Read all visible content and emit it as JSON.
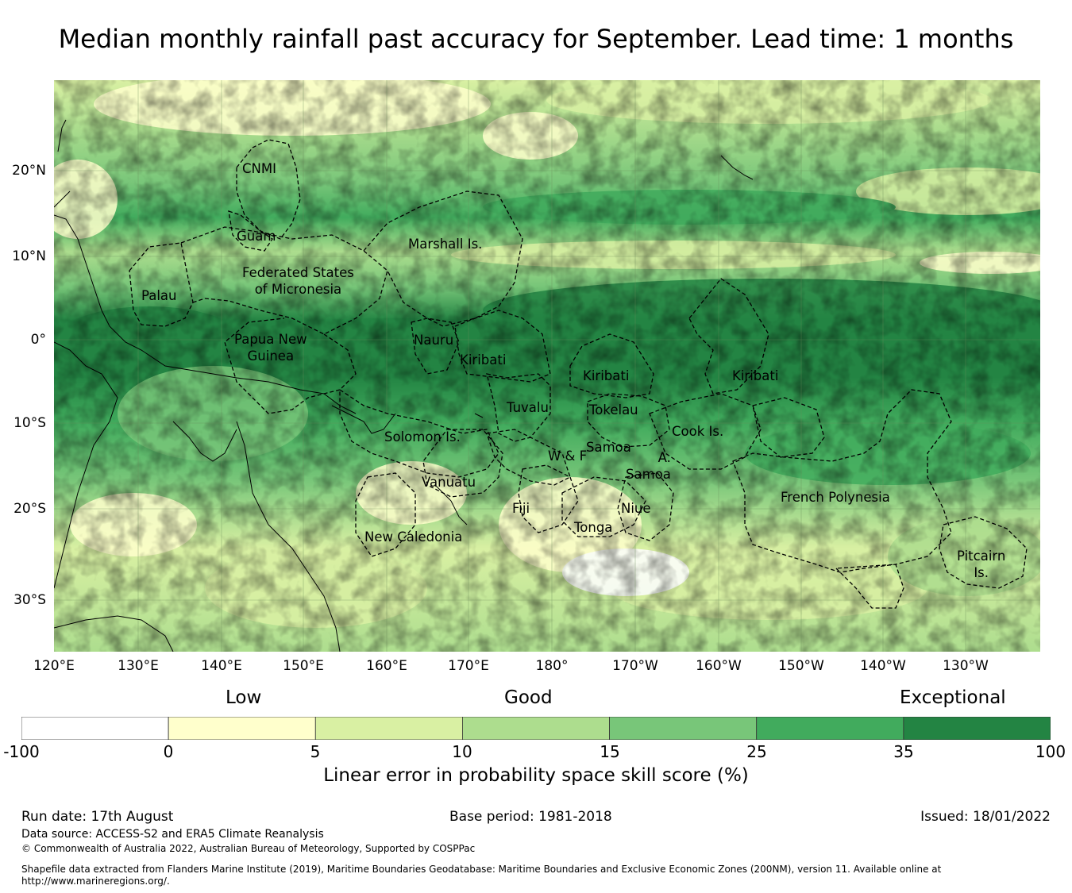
{
  "title": "Median monthly rainfall past accuracy for September. Lead time: 1 months",
  "map": {
    "lat_labels": [
      "20°N",
      "10°N",
      "0°",
      "10°S",
      "20°S",
      "30°S"
    ],
    "lon_labels": [
      "120°E",
      "130°E",
      "140°E",
      "150°E",
      "160°E",
      "170°E",
      "180°",
      "170°W",
      "160°W",
      "150°W",
      "140°W",
      "130°W"
    ],
    "regions": [
      "CNMI",
      "Guam",
      "Marshall Is.",
      "Federated States\nof Micronesia",
      "Palau",
      "Papua New\nGuinea",
      "Nauru",
      "Kiribati",
      "Kiribati",
      "Kiribati",
      "Tuvalu",
      "Tokelau",
      "Solomon Is.",
      "Cook Is.",
      "Samoa",
      "W & F",
      "A.\nSamoa",
      "Vanuatu",
      "Fiji",
      "Niue",
      "Tonga",
      "French Polynesia",
      "New Caledonia",
      "Pitcairn\nIs."
    ]
  },
  "legend": {
    "band_labels": [
      "Low",
      "Good",
      "Exceptional"
    ],
    "ticks": [
      "-100",
      "0",
      "5",
      "10",
      "15",
      "25",
      "35",
      "100"
    ],
    "colors": [
      "#ffffff",
      "#ffffcc",
      "#d9f0a3",
      "#addd8e",
      "#78c679",
      "#41ab5d",
      "#238443"
    ],
    "title": "Linear error in probability space skill score (%)"
  },
  "footer": {
    "run_date": "Run date: 17th August",
    "base_period": "Base period: 1981-2018",
    "issued": "Issued: 18/01/2022",
    "data_source": "Data source: ACCESS-S2 and ERA5 Climate Reanalysis",
    "copyright": "© Commonwealth of Australia 2022, Australian Bureau of Meteorology, Supported by COSPPac",
    "shapefile_line1": "Shapefile data extracted from Flanders Marine Institute (2019), Maritime Boundaries Geodatabase: Maritime Boundaries and Exclusive Economic Zones (200NM), version 11. Available online at",
    "shapefile_line2": "http://www.marineregions.org/."
  }
}
